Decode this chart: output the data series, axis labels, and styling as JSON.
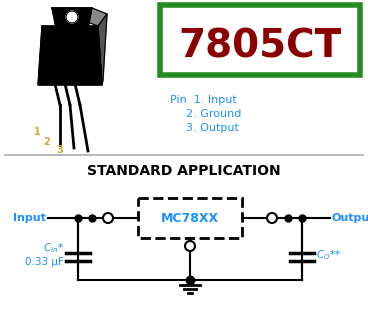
{
  "bg_color": "#ffffff",
  "title_text": "7805CT",
  "title_color": "#8B0000",
  "title_box_color": "#228B22",
  "pin_label_color": "#1E90FF",
  "pin_text_1": "Pin  1. Input",
  "pin_text_2": "2. Ground",
  "pin_text_3": "3. Output",
  "section_title": "STANDARD APPLICATION",
  "section_title_color": "#000000",
  "ic_label": "MC78XX",
  "ic_label_color": "#1E90FF",
  "input_label": "Input",
  "output_label": "Output",
  "cin_value": "0.33 μF",
  "wire_color": "#000000",
  "node_color": "#000000",
  "separator_color": "#aaaaaa",
  "pin_numbers_color": "#DAA520"
}
